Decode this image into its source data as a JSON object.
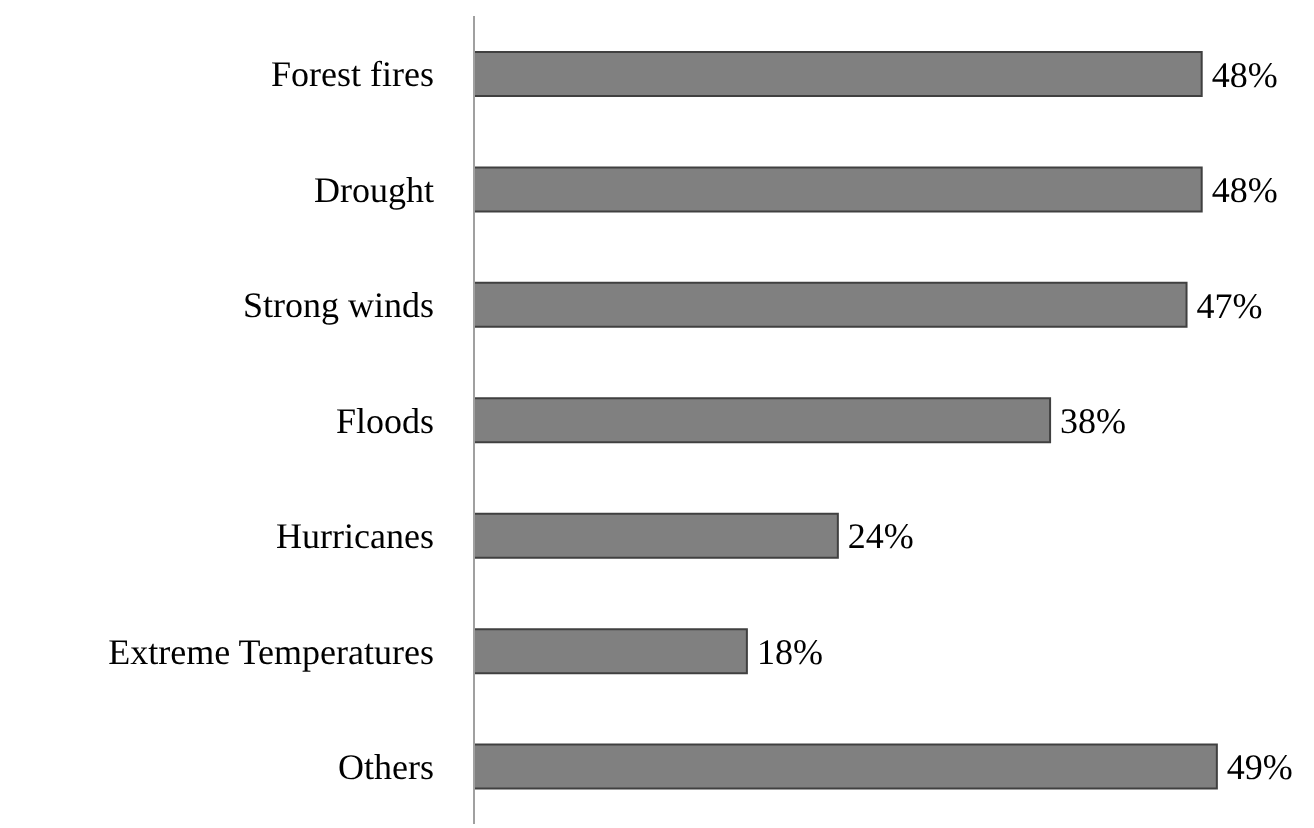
{
  "chart_data": {
    "type": "bar",
    "orientation": "horizontal",
    "categories": [
      "Forest fires",
      "Drought",
      "Strong winds",
      "Floods",
      "Hurricanes",
      "Extreme Temperatures",
      "Others"
    ],
    "values": [
      48,
      48,
      47,
      38,
      24,
      18,
      49
    ],
    "value_labels": [
      "48%",
      "48%",
      "47%",
      "38%",
      "24%",
      "18%",
      "49%"
    ],
    "color": "#808080",
    "grid": false,
    "legend": false
  }
}
